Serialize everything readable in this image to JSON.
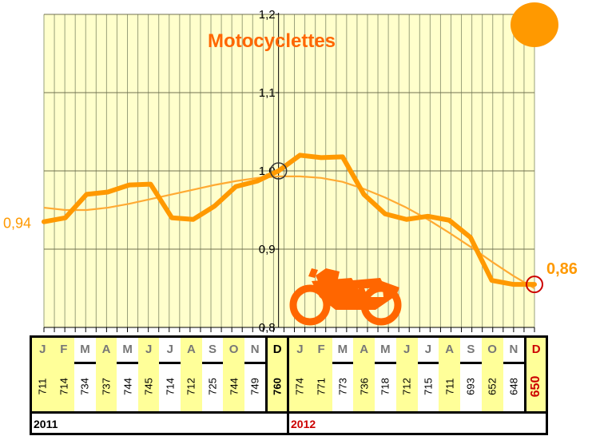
{
  "colors": {
    "plot_bg": "#ffffcc",
    "grid": "#9aa07a",
    "line": "#ff9900",
    "trend": "#ffaa33",
    "label": "#ff9900",
    "accent_red": "#cc0000",
    "sun": "#ff9900",
    "moto_icon": "#ff6600",
    "band_yellow": "#ffff99"
  },
  "chart_data": {
    "type": "line",
    "title": "Motocyclettes",
    "y_ticks": [
      "0,8",
      "0,9",
      "1,0",
      "1,1",
      "1,2"
    ],
    "ylim": [
      0.8,
      1.2
    ],
    "x": [
      "J",
      "F",
      "M",
      "A",
      "M",
      "J",
      "J",
      "A",
      "S",
      "O",
      "N",
      "D",
      "J",
      "F",
      "M",
      "A",
      "M",
      "J",
      "J",
      "A",
      "S",
      "O",
      "N",
      "D"
    ],
    "series": [
      {
        "values": [
          0.935,
          0.94,
          0.97,
          0.973,
          0.982,
          0.983,
          0.94,
          0.938,
          0.955,
          0.98,
          0.987,
          1.0,
          1.02,
          1.017,
          1.018,
          0.97,
          0.945,
          0.938,
          0.942,
          0.937,
          0.915,
          0.86,
          0.855,
          0.855
        ]
      },
      {
        "values": [
          0.953,
          0.95,
          0.95,
          0.953,
          0.958,
          0.964,
          0.97,
          0.976,
          0.982,
          0.987,
          0.991,
          0.993,
          0.993,
          0.991,
          0.986,
          0.977,
          0.966,
          0.953,
          0.938,
          0.921,
          0.903,
          0.884,
          0.866,
          0.85
        ]
      }
    ],
    "start_label": "0,94",
    "end_label": "0,86",
    "table": {
      "months": [
        "J",
        "F",
        "M",
        "A",
        "M",
        "J",
        "J",
        "A",
        "S",
        "O",
        "N",
        "D"
      ],
      "highlight": [
        true,
        true,
        false,
        true,
        false,
        true,
        false,
        true,
        false,
        true,
        false,
        true
      ],
      "year_2011": {
        "label": "2011",
        "values": [
          "711",
          "714",
          "734",
          "737",
          "744",
          "745",
          "714",
          "712",
          "725",
          "744",
          "749",
          "760"
        ]
      },
      "year_2012": {
        "label": "2012",
        "values": [
          "774",
          "771",
          "773",
          "736",
          "718",
          "712",
          "715",
          "711",
          "693",
          "652",
          "648",
          "650"
        ]
      }
    }
  }
}
